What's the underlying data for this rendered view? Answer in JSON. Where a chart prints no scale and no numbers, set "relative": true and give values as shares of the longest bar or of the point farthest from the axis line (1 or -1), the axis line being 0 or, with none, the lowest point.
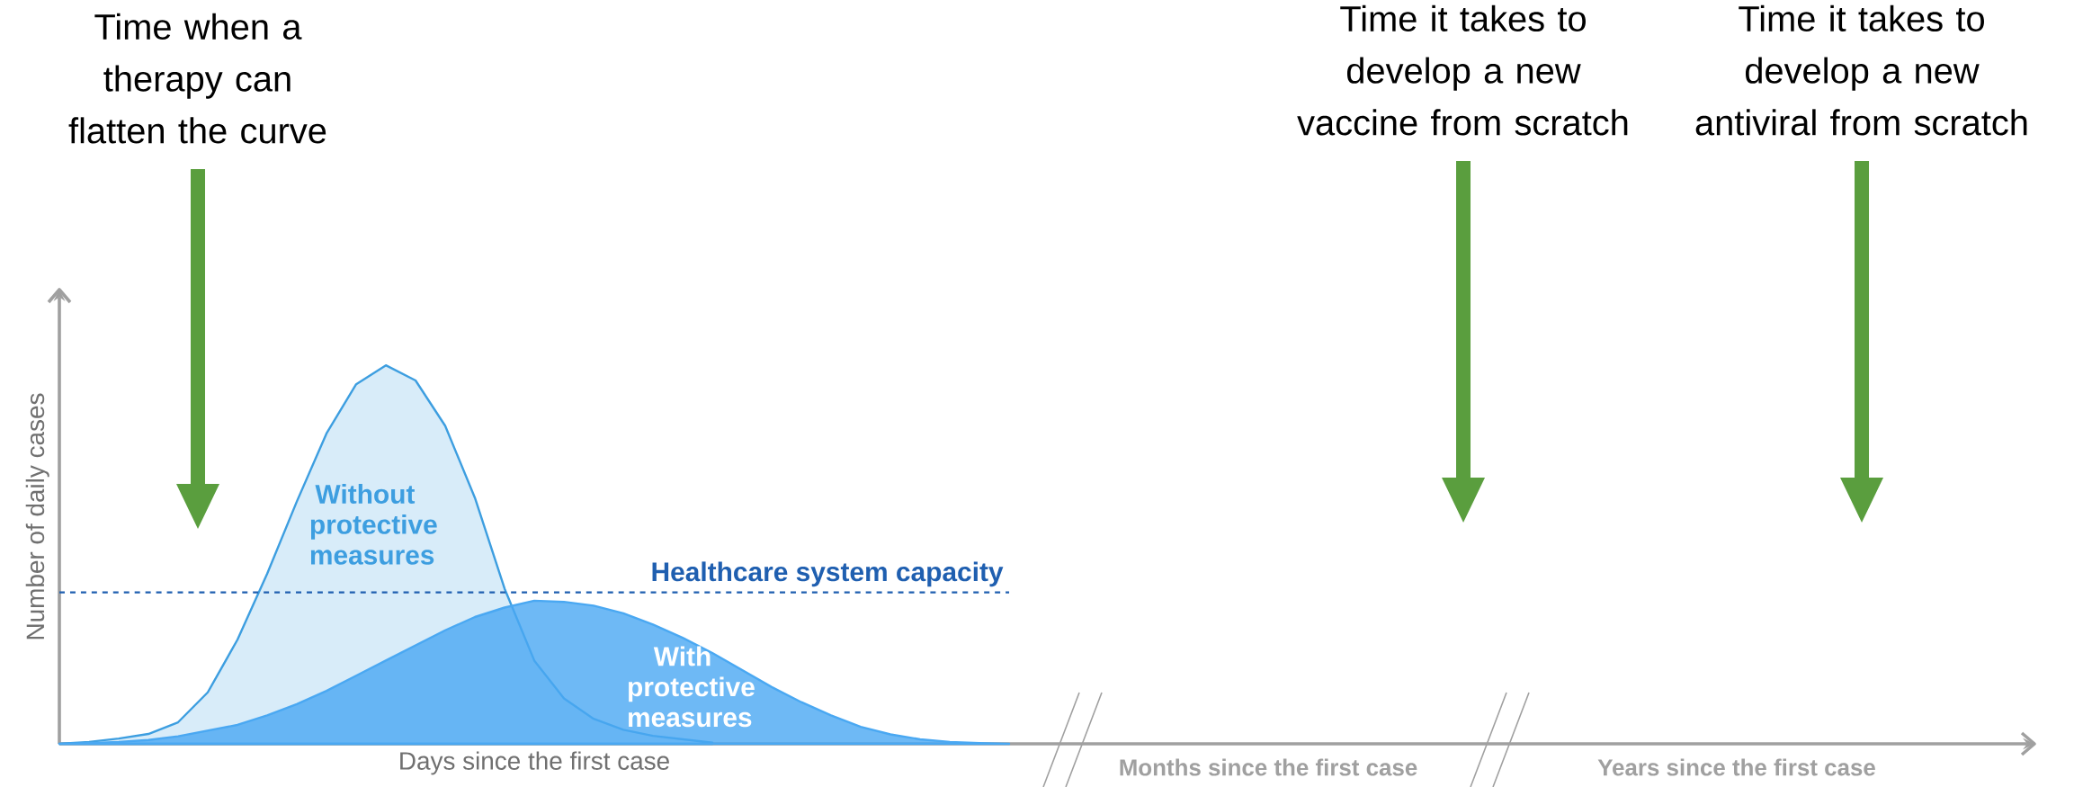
{
  "chart_data": {
    "type": "area",
    "relative": true,
    "legend": false,
    "xlabel": "Days since the first case",
    "ylabel": "Number of daily cases",
    "categories": [
      null,
      null,
      null,
      null,
      null,
      null,
      null,
      null,
      null,
      null,
      null,
      null,
      null,
      null,
      null,
      null,
      null,
      null,
      null,
      null,
      null,
      null,
      null,
      null,
      null,
      null,
      null,
      null,
      null,
      null,
      null,
      null,
      null
    ],
    "series": [
      {
        "name": "Without protective measures",
        "color": "#3d9ee0",
        "values": [
          0,
          0.005,
          0.014,
          0.026,
          0.057,
          0.136,
          0.275,
          0.449,
          0.64,
          0.82,
          0.95,
          1.0,
          0.96,
          0.84,
          0.65,
          0.41,
          0.22,
          0.12,
          0.066,
          0.037,
          0.021,
          0.012,
          0.003,
          null,
          null,
          null,
          null,
          null,
          null,
          null,
          null,
          null,
          null
        ]
      },
      {
        "name": "With protective measures",
        "color": "#4aa8f2",
        "values": [
          0,
          0.002,
          0.005,
          0.01,
          0.02,
          0.035,
          0.05,
          0.075,
          0.105,
          0.14,
          0.18,
          0.22,
          0.26,
          0.3,
          0.335,
          0.36,
          0.378,
          0.375,
          0.365,
          0.345,
          0.315,
          0.28,
          0.24,
          0.195,
          0.15,
          0.11,
          0.075,
          0.045,
          0.025,
          0.012,
          0.005,
          0.002,
          0
        ]
      }
    ],
    "ref_lines": [
      {
        "axis": "y",
        "value": 0.4,
        "label": "Healthcare system capacity",
        "color": "#1f5fb0",
        "line_style": "dashed"
      }
    ],
    "annotations": [
      "Time when a therapy can flatten the curve",
      "Time it takes to develop a new vaccine from scratch",
      "Time it takes to develop a new antiviral from scratch",
      "Months since the first case",
      "Years since the first case"
    ]
  }
}
